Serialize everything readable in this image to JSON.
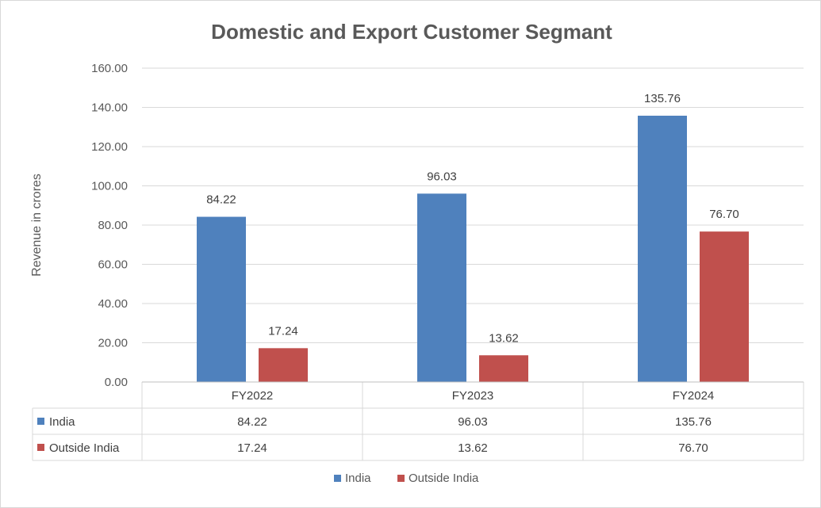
{
  "chart_data": {
    "type": "bar",
    "title": "Domestic and Export Customer Segmant",
    "xlabel": "",
    "ylabel": "Revenue in crores",
    "ylim": [
      0,
      160
    ],
    "yticks": [
      "0.00",
      "20.00",
      "40.00",
      "60.00",
      "80.00",
      "100.00",
      "120.00",
      "140.00",
      "160.00"
    ],
    "categories": [
      "FY2022",
      "FY2023",
      "FY2024"
    ],
    "series": [
      {
        "name": "India",
        "color": "#4f81bd",
        "values": [
          84.22,
          96.03,
          135.76
        ],
        "labels": [
          "84.22",
          "96.03",
          "135.76"
        ]
      },
      {
        "name": "Outside India",
        "color": "#c0504d",
        "values": [
          17.24,
          13.62,
          76.7
        ],
        "labels": [
          "17.24",
          "13.62",
          "76.70"
        ]
      }
    ],
    "grid": true,
    "data_table": true,
    "legend_position": "bottom"
  }
}
